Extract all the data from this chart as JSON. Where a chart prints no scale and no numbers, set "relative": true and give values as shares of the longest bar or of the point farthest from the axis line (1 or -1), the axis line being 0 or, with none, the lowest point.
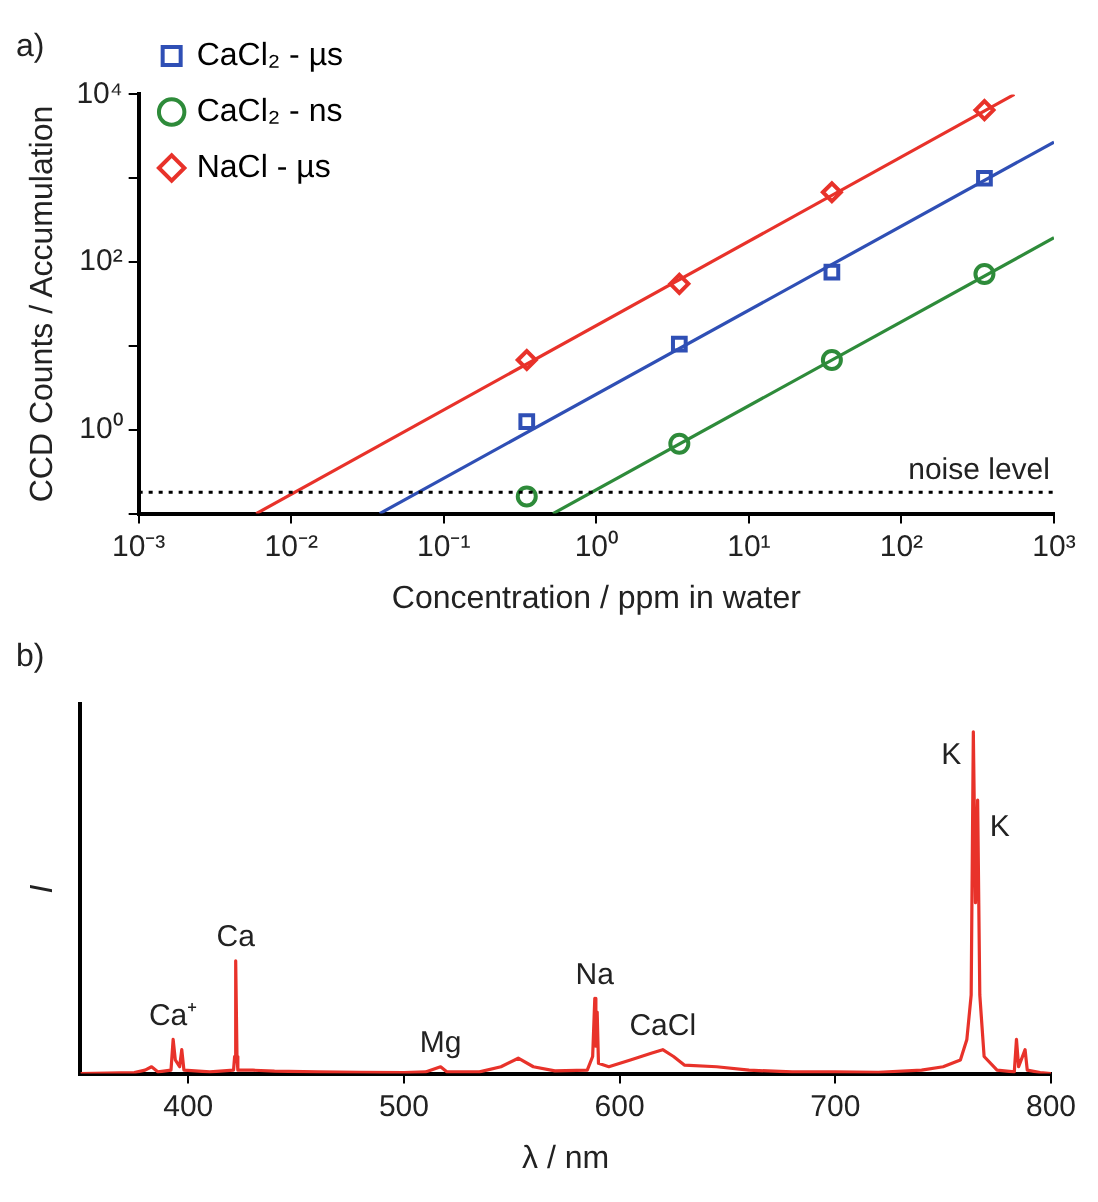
{
  "chart_data": [
    {
      "type": "scatter",
      "title": "a)",
      "xlabel": "Concentration / ppm in water",
      "ylabel": "CCD Counts / Accumulation",
      "log": "xy",
      "grid": false,
      "legend": "top left",
      "xlim": [
        0.001,
        1000
      ],
      "ylim": [
        0.1,
        10000
      ],
      "xticks": [
        {
          "value": 0.001,
          "label": "10⁻³"
        },
        {
          "value": 0.01,
          "label": "10⁻²"
        },
        {
          "value": 0.1,
          "label": "10⁻¹"
        },
        {
          "value": 1,
          "label": "10⁰"
        },
        {
          "value": 10,
          "label": "10¹"
        },
        {
          "value": 100,
          "label": "10²"
        },
        {
          "value": 1000,
          "label": "10³"
        }
      ],
      "yticks": [
        {
          "value": 0.1,
          "label": null
        },
        {
          "value": 1,
          "label": "10⁰"
        },
        {
          "value": 10,
          "label": null
        },
        {
          "value": 100,
          "label": "10²"
        },
        {
          "value": 1000,
          "label": null
        },
        {
          "value": 10000,
          "label": "10⁴"
        }
      ],
      "series": [
        {
          "name": "CaCl₂ - µs",
          "type": "scatter",
          "marker": "square",
          "color": "#2f4fb5",
          "x": [
            0.35,
            3.5,
            35,
            350
          ],
          "values": [
            1.25,
            10.5,
            76,
            1000
          ]
        },
        {
          "name": "CaCl₂ - ns",
          "type": "scatter",
          "marker": "circle",
          "color": "#2e8b3a",
          "x": [
            0.35,
            3.5,
            35,
            350
          ],
          "values": [
            0.16,
            0.68,
            6.8,
            72
          ]
        },
        {
          "name": "NaCl - µs",
          "type": "scatter",
          "marker": "diamond",
          "color": "#e8322a",
          "x": [
            0.35,
            3.5,
            35,
            350
          ],
          "values": [
            6.8,
            55,
            680,
            6500
          ]
        },
        {
          "type": "line",
          "marker": "none",
          "color": "#2f4fb5",
          "x": [
            0.038,
            1000
          ],
          "values": [
            0.1,
            2700
          ]
        },
        {
          "type": "line",
          "marker": "none",
          "color": "#2e8b3a",
          "x": [
            0.52,
            1000
          ],
          "values": [
            0.1,
            195
          ]
        },
        {
          "type": "line",
          "marker": "none",
          "color": "#e8322a",
          "x": [
            0.0059,
            550
          ],
          "values": [
            0.1,
            10000
          ]
        }
      ],
      "ref_lines": [
        {
          "axis": "y",
          "value": 0.18,
          "label": "noise level",
          "color": "#000000",
          "line_style": "dotted"
        }
      ]
    },
    {
      "type": "line",
      "title": "b)",
      "xlabel": "λ / nm",
      "ylabel": "I",
      "relative": true,
      "grid": false,
      "legend": false,
      "marker": "none",
      "color": "#e8322a",
      "xlim": [
        350,
        800
      ],
      "xticks": [
        400,
        500,
        600,
        700,
        800
      ],
      "x": [
        350,
        375,
        380,
        383,
        386,
        392,
        393,
        394,
        396,
        397,
        398,
        410,
        421,
        421.5,
        422,
        422.6,
        423,
        430,
        440,
        460,
        480,
        500,
        510,
        517,
        520,
        535,
        545,
        553,
        560,
        570,
        585,
        587.5,
        588.5,
        589,
        589.6,
        590.2,
        595,
        605,
        615,
        620,
        625,
        630,
        645,
        660,
        680,
        700,
        720,
        740,
        750,
        758,
        761,
        763,
        764,
        765,
        766,
        767,
        769,
        775,
        783,
        784,
        785,
        788,
        789,
        795,
        800
      ],
      "values": [
        0,
        0.003,
        0.01,
        0.02,
        0.005,
        0.01,
        0.1,
        0.04,
        0.02,
        0.07,
        0.01,
        0.005,
        0.01,
        0.05,
        0.33,
        0.05,
        0.01,
        0.01,
        0.007,
        0.005,
        0.004,
        0.003,
        0.005,
        0.02,
        0.005,
        0.005,
        0.02,
        0.045,
        0.02,
        0.008,
        0.01,
        0.05,
        0.22,
        0.08,
        0.18,
        0.03,
        0.02,
        0.04,
        0.06,
        0.07,
        0.05,
        0.025,
        0.02,
        0.01,
        0.005,
        0.005,
        0.004,
        0.01,
        0.02,
        0.04,
        0.1,
        0.23,
        1.0,
        0.5,
        0.8,
        0.23,
        0.05,
        0.01,
        0.005,
        0.1,
        0.02,
        0.07,
        0.01,
        0.003,
        0
      ],
      "annotations": [
        {
          "text": "Ca⁺",
          "x": 393,
          "y": 0.1
        },
        {
          "text": "Ca",
          "x": 422,
          "y": 0.33
        },
        {
          "text": "Mg",
          "x": 517,
          "y": 0.02
        },
        {
          "text": "Na",
          "x": 588.5,
          "y": 0.22
        },
        {
          "text": "CaCl",
          "x": 620,
          "y": 0.07
        },
        {
          "text": "K",
          "x": 764,
          "y": 1.0
        },
        {
          "text": "K",
          "x": 766,
          "y": 0.8
        }
      ]
    }
  ]
}
